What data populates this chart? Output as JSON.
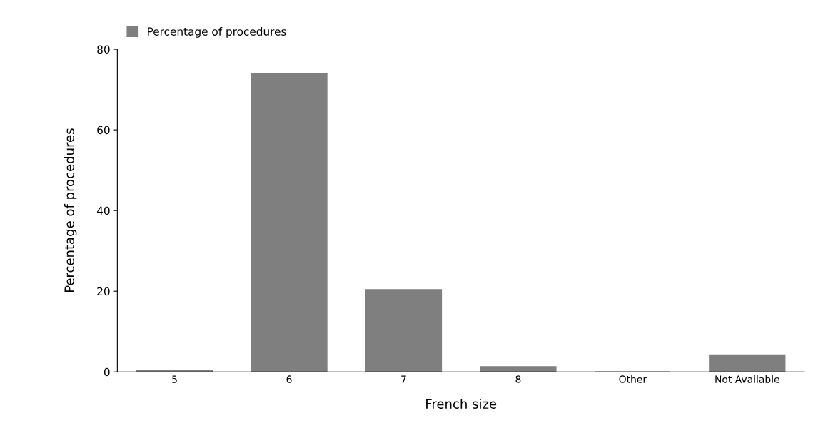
{
  "chart_data": {
    "type": "bar",
    "xlabel": "French size",
    "ylabel": "Percentage of procedures",
    "categories": [
      "5",
      "6",
      "7",
      "8",
      "Other",
      "Not Available"
    ],
    "series": [
      {
        "name": "Percentage of procedures",
        "color": "#7f7f7f",
        "values": [
          0.4,
          74,
          20.4,
          1.3,
          0,
          4.2
        ]
      }
    ],
    "ylim": [
      0,
      80
    ],
    "yticks": [
      0,
      20,
      40,
      60,
      80
    ],
    "grid": false,
    "legend": "top left"
  }
}
